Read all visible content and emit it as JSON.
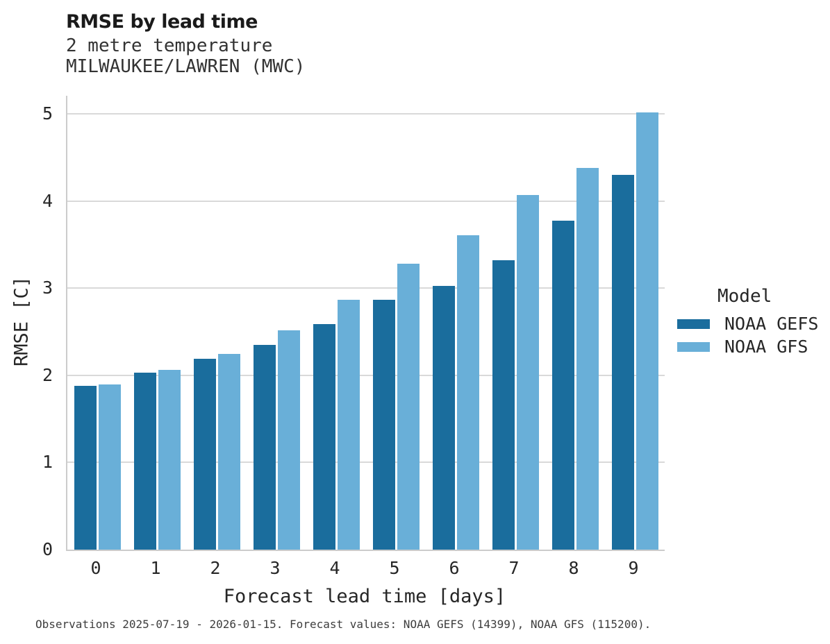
{
  "chart_data": {
    "type": "bar",
    "title": "RMSE by lead time",
    "subtitle": [
      "2 metre temperature",
      "MILWAUKEE/LAWREN (MWC)"
    ],
    "xlabel": "Forecast lead time [days]",
    "ylabel": "RMSE [C]",
    "categories": [
      "0",
      "1",
      "2",
      "3",
      "4",
      "5",
      "6",
      "7",
      "8",
      "9"
    ],
    "series": [
      {
        "name": "NOAA GEFS",
        "color": "#1a6d9d",
        "values": [
          1.88,
          2.03,
          2.19,
          2.35,
          2.59,
          2.87,
          3.03,
          3.32,
          3.78,
          4.3
        ]
      },
      {
        "name": "NOAA GFS",
        "color": "#69afd8",
        "values": [
          1.9,
          2.06,
          2.25,
          2.52,
          2.87,
          3.28,
          3.61,
          4.07,
          4.38,
          5.02
        ]
      }
    ],
    "ylim": [
      0,
      5.21
    ],
    "yticks": [
      0,
      1,
      2,
      3,
      4,
      5
    ],
    "grid": true,
    "legend_position": "right",
    "legend_title": "Model",
    "caption": "Observations 2025-07-19 - 2026-01-15. Forecast values: NOAA GEFS (14399), NOAA GFS (115200).",
    "colors": {
      "background": "#ffffff",
      "gridline": "#d9d9d9",
      "axis_line": "#cccccc",
      "text": "#262626"
    }
  }
}
